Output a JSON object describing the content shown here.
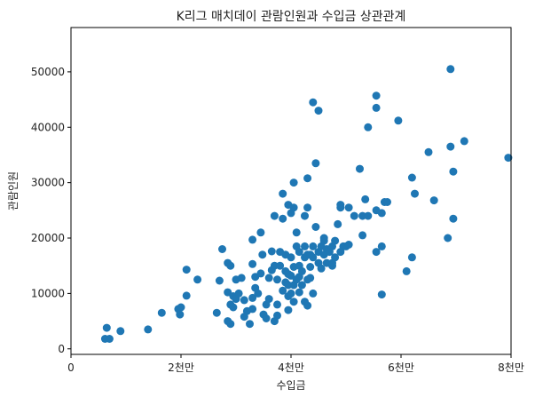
{
  "chart_data": {
    "type": "scatter",
    "title": "K리그 매치데이 관람인원과 수입금 상관관계",
    "xlabel": "수입금",
    "ylabel": "관람인원",
    "xlim": [
      0,
      80000000
    ],
    "ylim": [
      -1000,
      58000
    ],
    "x_ticks": [
      {
        "value": 0,
        "label": "0"
      },
      {
        "value": 20000000,
        "label": "2천만"
      },
      {
        "value": 40000000,
        "label": "4천만"
      },
      {
        "value": 60000000,
        "label": "6천만"
      },
      {
        "value": 80000000,
        "label": "8천만"
      }
    ],
    "y_ticks": [
      {
        "value": 0,
        "label": "0"
      },
      {
        "value": 10000,
        "label": "10000"
      },
      {
        "value": 20000,
        "label": "20000"
      },
      {
        "value": 30000,
        "label": "30000"
      },
      {
        "value": 40000,
        "label": "40000"
      },
      {
        "value": 50000,
        "label": "50000"
      }
    ],
    "grid": false,
    "marker_color": "#1f77b4",
    "points": [
      [
        6200000,
        1800
      ],
      [
        7000000,
        1800
      ],
      [
        6500000,
        3800
      ],
      [
        9000000,
        3200
      ],
      [
        14000000,
        3500
      ],
      [
        16500000,
        6500
      ],
      [
        19500000,
        7200
      ],
      [
        20000000,
        7500
      ],
      [
        19800000,
        6200
      ],
      [
        21000000,
        9600
      ],
      [
        21000000,
        14300
      ],
      [
        23000000,
        12500
      ],
      [
        26500000,
        6500
      ],
      [
        27000000,
        12300
      ],
      [
        27500000,
        18000
      ],
      [
        28500000,
        15500
      ],
      [
        29000000,
        15000
      ],
      [
        28500000,
        10200
      ],
      [
        29000000,
        8000
      ],
      [
        29500000,
        7500
      ],
      [
        29500000,
        9500
      ],
      [
        30000000,
        9000
      ],
      [
        30500000,
        10000
      ],
      [
        30000000,
        12500
      ],
      [
        31000000,
        12800
      ],
      [
        31500000,
        8800
      ],
      [
        31500000,
        5800
      ],
      [
        32000000,
        6800
      ],
      [
        32500000,
        4500
      ],
      [
        33000000,
        7200
      ],
      [
        33000000,
        9200
      ],
      [
        33500000,
        11000
      ],
      [
        33500000,
        13000
      ],
      [
        33000000,
        15300
      ],
      [
        33000000,
        19700
      ],
      [
        28500000,
        5000
      ],
      [
        29000000,
        4500
      ],
      [
        34000000,
        10000
      ],
      [
        34500000,
        13600
      ],
      [
        34800000,
        17000
      ],
      [
        34500000,
        21000
      ],
      [
        35000000,
        6200
      ],
      [
        35500000,
        5500
      ],
      [
        35500000,
        8000
      ],
      [
        36000000,
        9000
      ],
      [
        36000000,
        12800
      ],
      [
        36500000,
        14200
      ],
      [
        36500000,
        17600
      ],
      [
        37000000,
        24000
      ],
      [
        37000000,
        15000
      ],
      [
        37000000,
        5000
      ],
      [
        37500000,
        6000
      ],
      [
        37500000,
        8000
      ],
      [
        37500000,
        12500
      ],
      [
        38000000,
        15000
      ],
      [
        38000000,
        17500
      ],
      [
        38500000,
        23500
      ],
      [
        38500000,
        28000
      ],
      [
        38500000,
        10500
      ],
      [
        39000000,
        12000
      ],
      [
        39000000,
        14000
      ],
      [
        39000000,
        17000
      ],
      [
        39500000,
        7000
      ],
      [
        39500000,
        9500
      ],
      [
        39500000,
        11500
      ],
      [
        39500000,
        13500
      ],
      [
        39500000,
        26000
      ],
      [
        40000000,
        16500
      ],
      [
        40000000,
        24500
      ],
      [
        40000000,
        10000
      ],
      [
        40000000,
        13200
      ],
      [
        40500000,
        11500
      ],
      [
        40500000,
        14800
      ],
      [
        40500000,
        30000
      ],
      [
        40500000,
        25500
      ],
      [
        40500000,
        8500
      ],
      [
        41000000,
        12500
      ],
      [
        41000000,
        18500
      ],
      [
        41000000,
        21000
      ],
      [
        41500000,
        10200
      ],
      [
        41500000,
        13000
      ],
      [
        41500000,
        15000
      ],
      [
        41500000,
        17500
      ],
      [
        42000000,
        11500
      ],
      [
        42000000,
        14000
      ],
      [
        42500000,
        16500
      ],
      [
        42500000,
        18500
      ],
      [
        42500000,
        24000
      ],
      [
        42500000,
        8500
      ],
      [
        43000000,
        7800
      ],
      [
        43000000,
        12500
      ],
      [
        43000000,
        17000
      ],
      [
        43000000,
        25500
      ],
      [
        43000000,
        30800
      ],
      [
        43500000,
        17000
      ],
      [
        43500000,
        14800
      ],
      [
        43500000,
        12800
      ],
      [
        44000000,
        18500
      ],
      [
        44000000,
        16500
      ],
      [
        44000000,
        10000
      ],
      [
        44500000,
        22000
      ],
      [
        44500000,
        33500
      ],
      [
        44000000,
        44500
      ],
      [
        45000000,
        43000
      ],
      [
        45000000,
        15500
      ],
      [
        45000000,
        17500
      ],
      [
        45500000,
        14500
      ],
      [
        45500000,
        18500
      ],
      [
        46000000,
        20000
      ],
      [
        46000000,
        17000
      ],
      [
        46000000,
        19500
      ],
      [
        46500000,
        15500
      ],
      [
        46500000,
        18000
      ],
      [
        47000000,
        17500
      ],
      [
        47500000,
        15000
      ],
      [
        47500000,
        15500
      ],
      [
        47500000,
        18500
      ],
      [
        48000000,
        16500
      ],
      [
        48000000,
        19500
      ],
      [
        48500000,
        22500
      ],
      [
        49000000,
        25500
      ],
      [
        49000000,
        26000
      ],
      [
        49000000,
        17500
      ],
      [
        49500000,
        18500
      ],
      [
        50000000,
        18500
      ],
      [
        50500000,
        18800
      ],
      [
        50500000,
        25500
      ],
      [
        51500000,
        24000
      ],
      [
        52500000,
        32500
      ],
      [
        53000000,
        24000
      ],
      [
        53500000,
        27000
      ],
      [
        53000000,
        20500
      ],
      [
        54000000,
        24000
      ],
      [
        54000000,
        40000
      ],
      [
        55500000,
        43500
      ],
      [
        55500000,
        45700
      ],
      [
        55500000,
        17500
      ],
      [
        55500000,
        25000
      ],
      [
        56500000,
        24500
      ],
      [
        56500000,
        18500
      ],
      [
        57000000,
        26500
      ],
      [
        56500000,
        9800
      ],
      [
        57500000,
        26500
      ],
      [
        59500000,
        41200
      ],
      [
        61000000,
        14000
      ],
      [
        62000000,
        16500
      ],
      [
        62000000,
        30900
      ],
      [
        62500000,
        28000
      ],
      [
        65000000,
        35500
      ],
      [
        66000000,
        26800
      ],
      [
        68500000,
        20000
      ],
      [
        69000000,
        36500
      ],
      [
        69000000,
        50500
      ],
      [
        69500000,
        32000
      ],
      [
        69500000,
        23500
      ],
      [
        71500000,
        37500
      ],
      [
        79500000,
        34500
      ]
    ]
  }
}
